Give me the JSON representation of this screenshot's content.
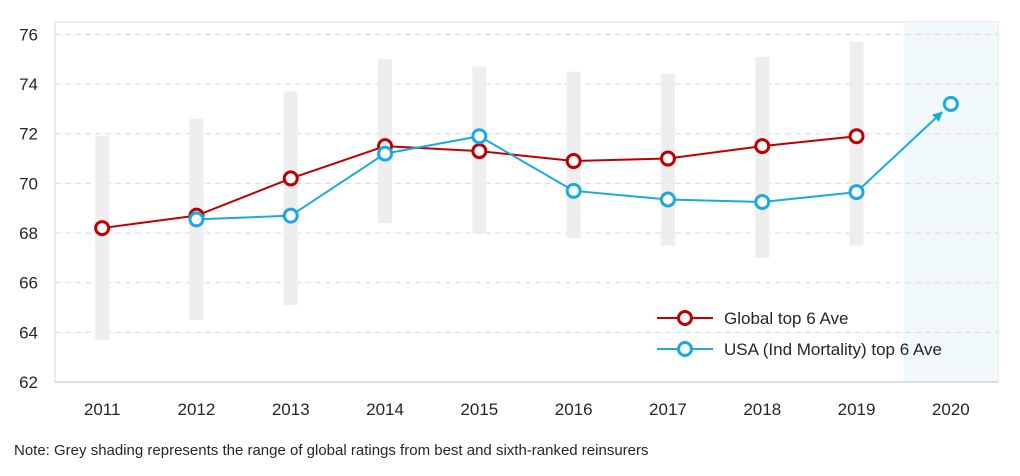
{
  "chart_data": {
    "type": "line",
    "title": "",
    "xlabel": "",
    "ylabel": "",
    "x": [
      "2011",
      "2012",
      "2013",
      "2014",
      "2015",
      "2016",
      "2017",
      "2018",
      "2019",
      "2020"
    ],
    "ylim": [
      62,
      76.5
    ],
    "yticks": [
      62,
      64,
      66,
      68,
      70,
      72,
      74,
      76
    ],
    "grid": "horizontal dashed",
    "legend_position": "bottom-right",
    "highlight_region": {
      "category": "2020",
      "color": "#f2f9fd"
    },
    "series": [
      {
        "name": "Global top 6 Ave",
        "color": "#c00000",
        "values": [
          68.2,
          68.7,
          70.2,
          71.5,
          71.3,
          70.9,
          71.0,
          71.5,
          71.9,
          null
        ]
      },
      {
        "name": "USA (Ind Mortality) top 6 Ave",
        "color": "#1aa9e1",
        "values": [
          null,
          68.55,
          68.7,
          71.2,
          71.9,
          69.7,
          69.35,
          69.25,
          69.65,
          73.2
        ],
        "arrow_to_last": true
      }
    ],
    "ranges": {
      "color": "#eeeeee",
      "low": [
        63.7,
        64.5,
        65.1,
        68.4,
        68.0,
        67.8,
        67.5,
        67.0,
        67.5,
        null
      ],
      "high": [
        71.9,
        72.6,
        73.7,
        75.0,
        74.7,
        74.5,
        74.4,
        75.1,
        75.7,
        null
      ]
    },
    "note": "Note: Grey shading represents the range of global ratings from best and sixth-ranked reinsurers"
  }
}
